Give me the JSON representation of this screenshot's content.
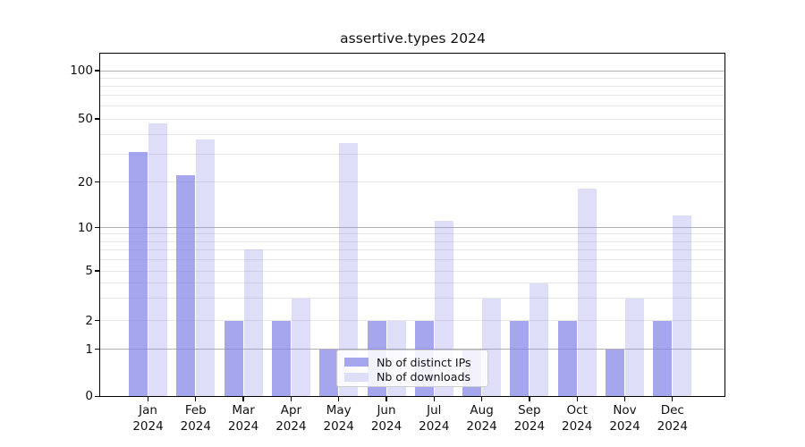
{
  "title": "assertive.types 2024",
  "legend": {
    "items": [
      {
        "label": "Nb of distinct IPs",
        "color": "#a6a6ee"
      },
      {
        "label": "Nb of downloads",
        "color": "#dedef9"
      }
    ]
  },
  "colors": {
    "bar_distinct_ips": "#a6a6ee",
    "bar_downloads": "#dedef9",
    "grid_major": "#b2b2b2",
    "grid_minor": "#e7e7e7",
    "axis": "#000000",
    "background": "#ffffff"
  },
  "chart_data": {
    "type": "bar",
    "title": "assertive.types 2024",
    "categories": [
      "Jan",
      "Feb",
      "Mar",
      "Apr",
      "May",
      "Jun",
      "Jul",
      "Aug",
      "Sep",
      "Oct",
      "Nov",
      "Dec"
    ],
    "category_year": "2024",
    "series": [
      {
        "name": "Nb of distinct IPs",
        "values": [
          31,
          22,
          2,
          2,
          1,
          2,
          2,
          1,
          2,
          2,
          1,
          2
        ]
      },
      {
        "name": "Nb of downloads",
        "values": [
          47,
          37,
          7,
          3,
          35,
          2,
          11,
          3,
          4,
          18,
          3,
          12
        ]
      }
    ],
    "xlabel": "",
    "ylabel": "",
    "yscale": "log-like (0,1,2,5,10,20,50,100)",
    "y_ticks": [
      0,
      1,
      2,
      5,
      10,
      20,
      50,
      100
    ],
    "ylim": [
      0,
      140
    ],
    "grid": "horizontal major+minor",
    "legend_position": "lower center inside plot"
  }
}
